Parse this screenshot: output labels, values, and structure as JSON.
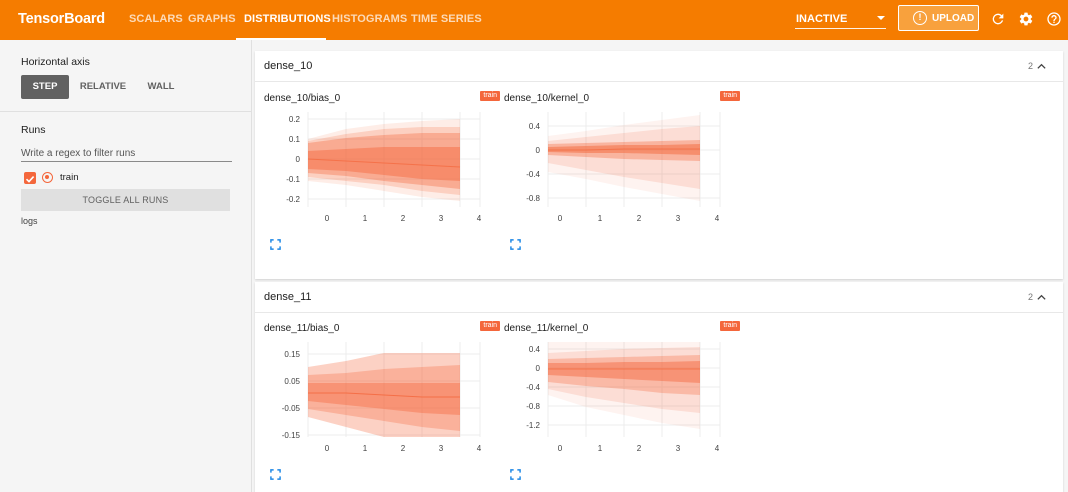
{
  "app": {
    "title": "TensorBoard"
  },
  "nav": {
    "tabs": [
      {
        "label": "SCALARS"
      },
      {
        "label": "GRAPHS"
      },
      {
        "label": "DISTRIBUTIONS"
      },
      {
        "label": "HISTOGRAMS"
      },
      {
        "label": "TIME SERIES"
      }
    ],
    "active_tab": "DISTRIBUTIONS",
    "status_value": "INACTIVE",
    "upload_label": "UPLOAD"
  },
  "icons": {
    "upload": "info-circle-icon",
    "refresh": "refresh-icon",
    "settings": "gear-icon",
    "help": "help-icon",
    "dropdown": "caret-down-icon",
    "expand": "fullscreen-icon",
    "collapse": "chevron-up-icon"
  },
  "colors": {
    "brand": "#f57c00",
    "run_train": "#f4673c",
    "axis_active": "#616161"
  },
  "sidebar": {
    "axis_title": "Horizontal axis",
    "axis_options": [
      "STEP",
      "RELATIVE",
      "WALL"
    ],
    "axis_selected": "STEP",
    "runs_title": "Runs",
    "filter_placeholder": "Write a regex to filter runs",
    "runs": [
      {
        "name": "train",
        "checked": true
      }
    ],
    "toggle_all_label": "TOGGLE ALL RUNS",
    "logdir": "logs"
  },
  "groups": [
    {
      "name": "dense_10",
      "count": "2",
      "charts": [
        {
          "title": "dense_10/bias_0",
          "run": "train",
          "x_ticks": [
            "0",
            "1",
            "2",
            "3",
            "4"
          ],
          "y_ticks": [
            "0.2",
            "0.1",
            "0",
            "-0.1",
            "-0.2"
          ]
        },
        {
          "title": "dense_10/kernel_0",
          "run": "train",
          "x_ticks": [
            "0",
            "1",
            "2",
            "3",
            "4"
          ],
          "y_ticks": [
            "0.4",
            "0",
            "-0.4",
            "-0.8"
          ]
        }
      ]
    },
    {
      "name": "dense_11",
      "count": "2",
      "charts": [
        {
          "title": "dense_11/bias_0",
          "run": "train",
          "x_ticks": [
            "0",
            "1",
            "2",
            "3",
            "4"
          ],
          "y_ticks": [
            "0.15",
            "0.05",
            "-0.05",
            "-0.15"
          ]
        },
        {
          "title": "dense_11/kernel_0",
          "run": "train",
          "x_ticks": [
            "0",
            "1",
            "2",
            "3",
            "4"
          ],
          "y_ticks": [
            "0.4",
            "0",
            "-0.4",
            "-0.8",
            "-1.2"
          ]
        }
      ]
    }
  ]
}
